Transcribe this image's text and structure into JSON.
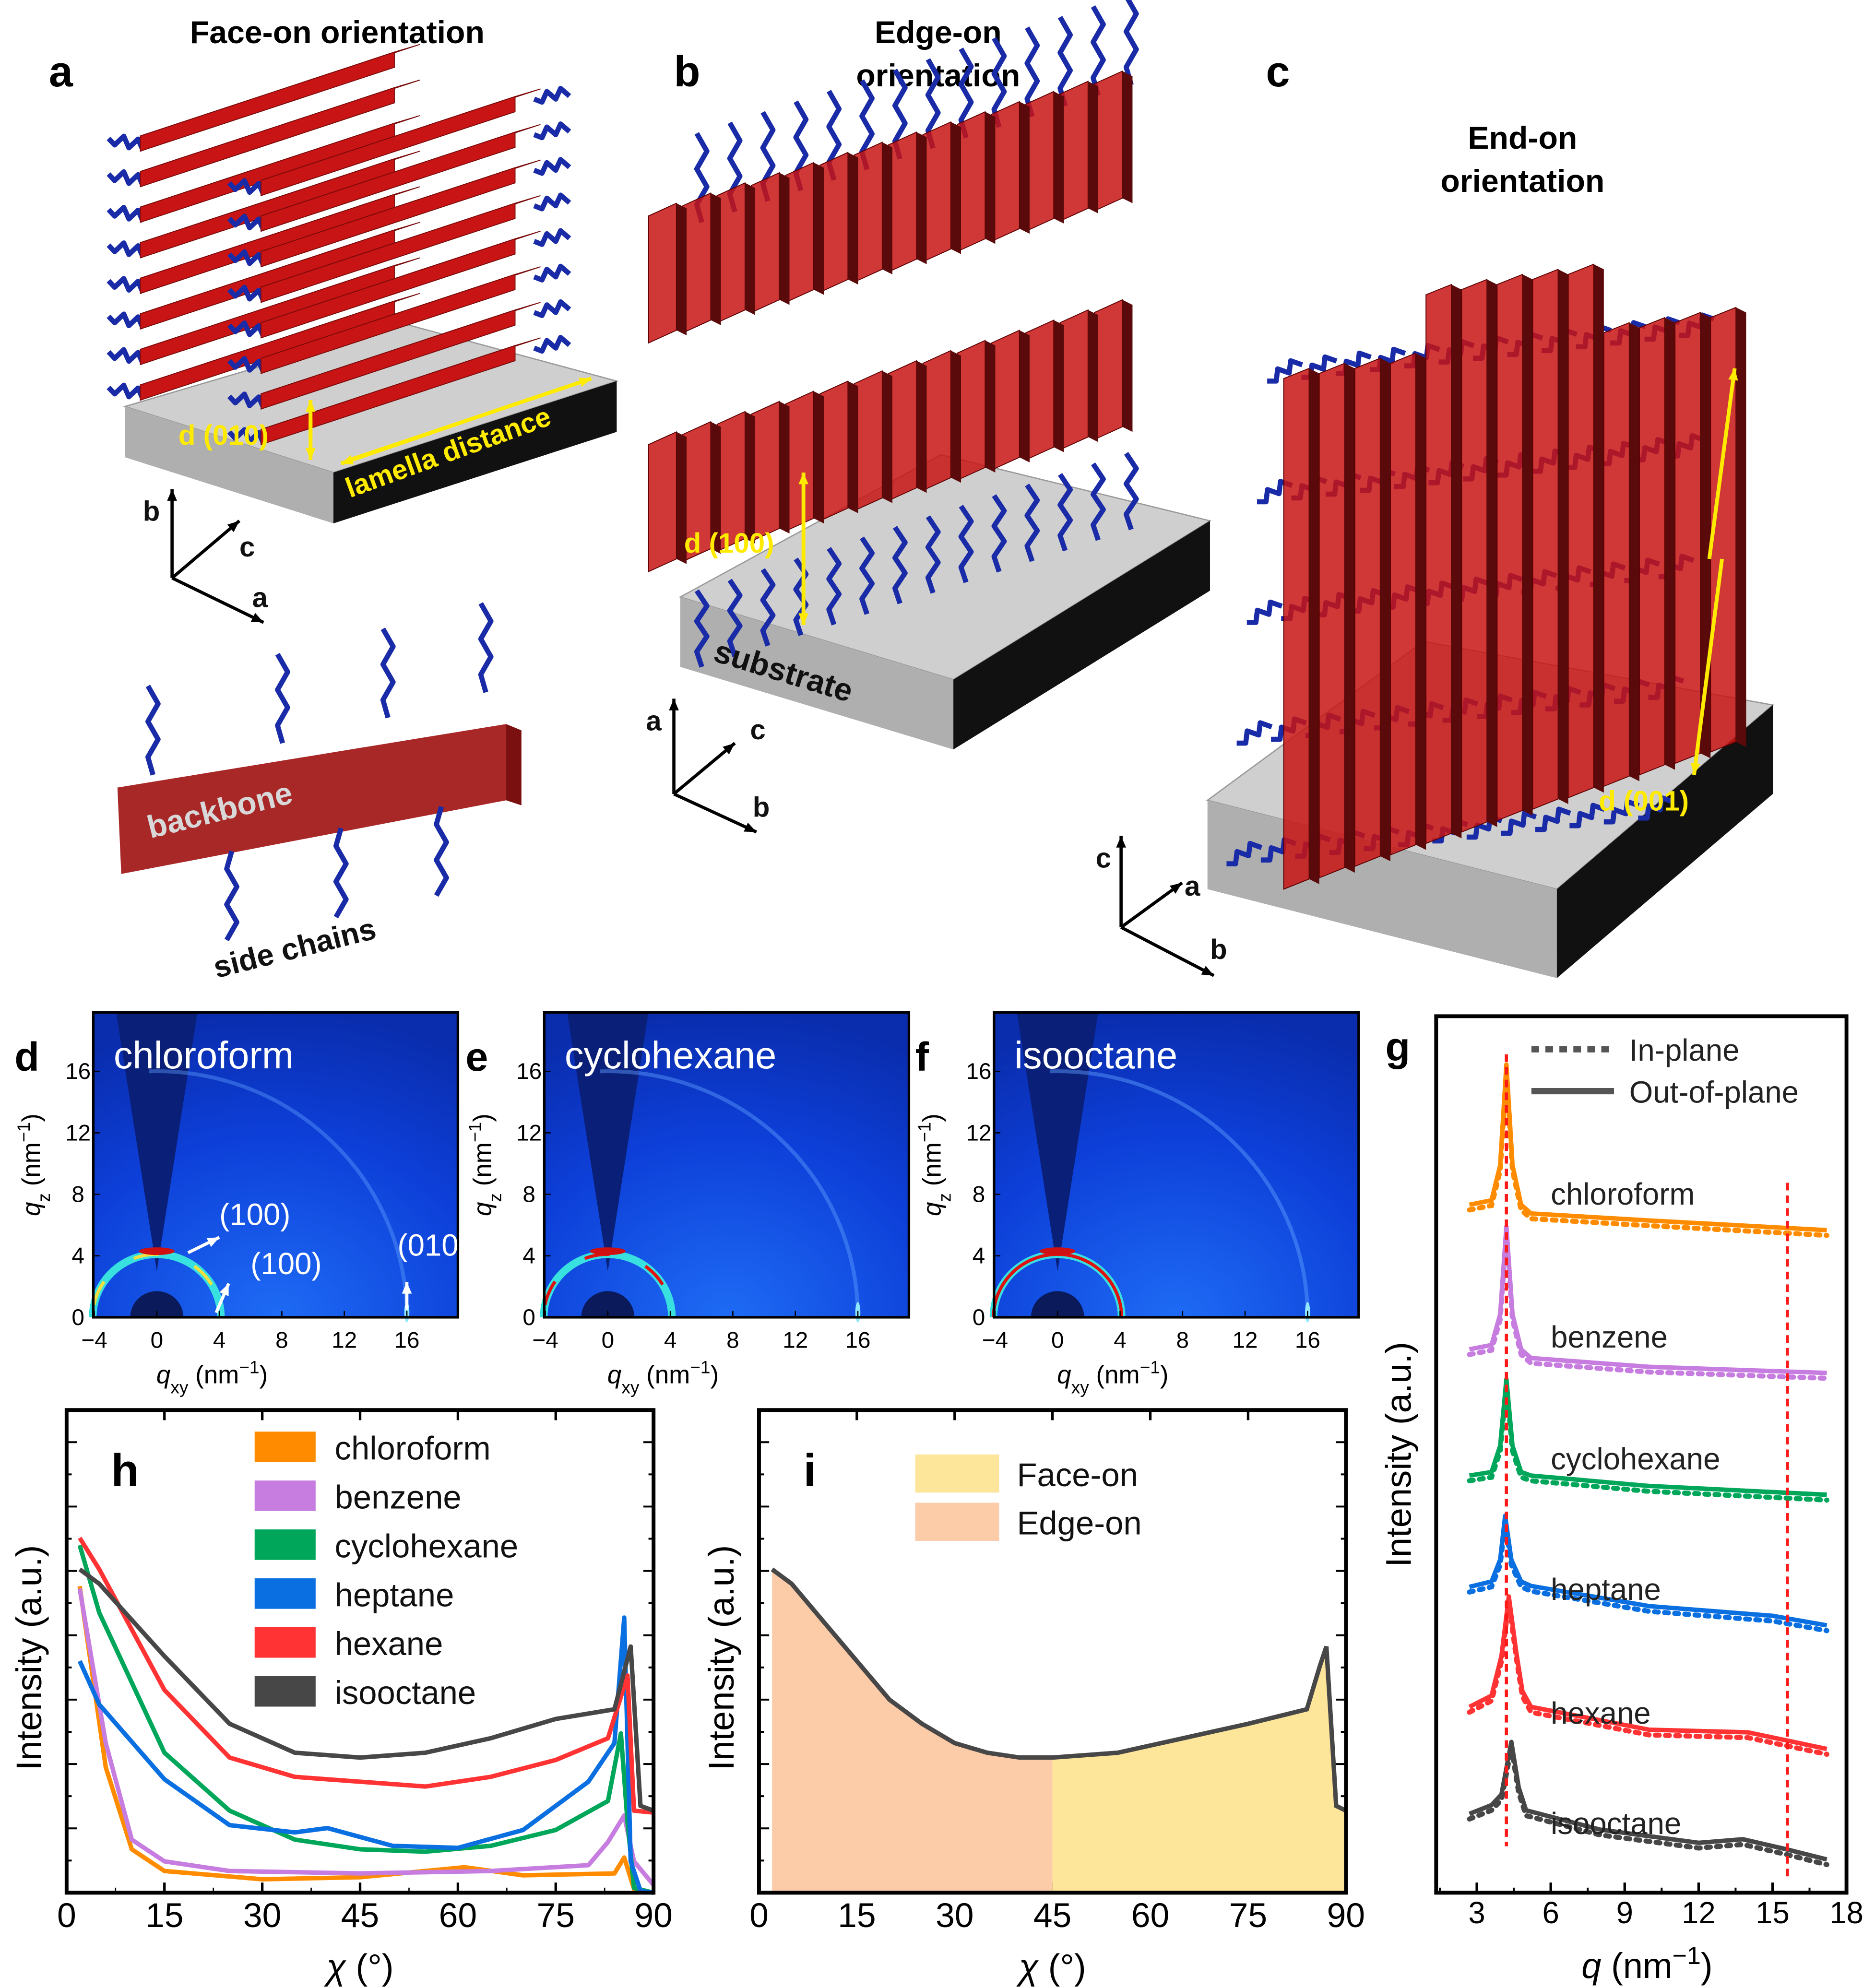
{
  "panels": {
    "a": {
      "label": "a",
      "title": "Face-on orientation",
      "d_label": "d (010)",
      "lamella_label": "lamella distance",
      "axes": [
        "b",
        "c",
        "a"
      ],
      "backbone_label": "backbone",
      "side_chains_label": "side chains"
    },
    "b": {
      "label": "b",
      "title_line1": "Edge-on",
      "title_line2": "orientation",
      "d_label": "d (100)",
      "substrate_label": "substrate",
      "axes": [
        "a",
        "c",
        "b"
      ]
    },
    "c": {
      "label": "c",
      "title_line1": "End-on",
      "title_line2": "orientation",
      "d_label": "d (001)",
      "axes": [
        "c",
        "a",
        "b"
      ]
    }
  },
  "colors": {
    "backbone": "#C81414",
    "side_chain": "#1A2BA8",
    "annotation": "#FFEB00",
    "substrate": "#BDBDBD",
    "chloroform": "#FF8C00",
    "benzene": "#C77CE0",
    "cyclohexane": "#00A65A",
    "heptane": "#0A6FE0",
    "hexane": "#FF3333",
    "isooctane": "#474747",
    "face_on": "#FDE59A",
    "edge_on": "#FCCBA8",
    "guide": "#FF1A1A"
  },
  "chart_data": [
    {
      "id": "d",
      "type": "heatmap",
      "label": "d",
      "title": "chloroform",
      "xlabel": {
        "sym": "q",
        "sub": "xy",
        "unit": " (nm",
        "sup": "−1",
        "close": ")"
      },
      "ylabel": {
        "sym": "q",
        "sub": "z",
        "unit": " (nm",
        "sup": "−1",
        "close": ")"
      },
      "xticks": [
        "−4",
        "0",
        "4",
        "8",
        "12",
        "16"
      ],
      "yticks": [
        "0",
        "4",
        "8",
        "12",
        "16"
      ],
      "xlim": [
        -4,
        19.2
      ],
      "ylim": [
        0,
        19.8
      ],
      "ring_100_intensity": 0.6,
      "ring_010_intensity": 0.2,
      "annotations": [
        "(100)",
        "(100)",
        "(010)"
      ]
    },
    {
      "id": "e",
      "type": "heatmap",
      "label": "e",
      "title": "cyclohexane",
      "xlabel": {
        "sym": "q",
        "sub": "xy",
        "unit": " (nm",
        "sup": "−1",
        "close": ")"
      },
      "ylabel": {
        "sym": "q",
        "sub": "z",
        "unit": " (nm",
        "sup": "−1",
        "close": ")"
      },
      "xticks": [
        "−4",
        "0",
        "4",
        "8",
        "12",
        "16"
      ],
      "yticks": [
        "0",
        "4",
        "8",
        "12",
        "16"
      ],
      "xlim": [
        -4,
        19.2
      ],
      "ylim": [
        0,
        19.8
      ],
      "ring_100_intensity": 0.8,
      "ring_010_intensity": 0.3
    },
    {
      "id": "f",
      "type": "heatmap",
      "label": "f",
      "title": "isooctane",
      "xlabel": {
        "sym": "q",
        "sub": "xy",
        "unit": " (nm",
        "sup": "−1",
        "close": ")"
      },
      "ylabel": {
        "sym": "q",
        "sub": "z",
        "unit": " (nm",
        "sup": "−1",
        "close": ")"
      },
      "xticks": [
        "−4",
        "0",
        "4",
        "8",
        "12",
        "16"
      ],
      "yticks": [
        "0",
        "4",
        "8",
        "12",
        "16"
      ],
      "xlim": [
        -4,
        19.2
      ],
      "ylim": [
        0,
        19.8
      ],
      "ring_100_intensity": 1.0,
      "ring_010_intensity": 0.35
    },
    {
      "id": "g",
      "type": "line",
      "label": "g",
      "xlabel": {
        "sym": "q",
        "unit": " (nm",
        "sup": "−1",
        "close": ")"
      },
      "ylabel": "Intensity (a.u.)",
      "xticks": [
        "3",
        "6",
        "9",
        "12",
        "15",
        "18"
      ],
      "xtick_values": [
        3,
        6,
        9,
        12,
        15,
        18
      ],
      "xlim": [
        1.35,
        18
      ],
      "ylim": [
        0,
        1
      ],
      "legend": [
        {
          "style": "dotted",
          "label": "In-plane"
        },
        {
          "style": "solid",
          "label": "Out-of-plane"
        }
      ],
      "guide_lines": [
        4.2,
        15.6
      ],
      "series": [
        {
          "name": "chloroform",
          "x": [
            2.7,
            3.6,
            3.95,
            4.2,
            4.45,
            4.8,
            5.2,
            10,
            17.2
          ],
          "y": [
            0.785,
            0.79,
            0.83,
            0.945,
            0.83,
            0.785,
            0.775,
            0.767,
            0.756
          ]
        },
        {
          "name": "benzene",
          "x": [
            2.7,
            3.6,
            3.95,
            4.2,
            4.45,
            4.8,
            5.2,
            10,
            17.2
          ],
          "y": [
            0.62,
            0.625,
            0.66,
            0.76,
            0.66,
            0.62,
            0.61,
            0.6,
            0.593
          ]
        },
        {
          "name": "cyclohexane",
          "x": [
            2.7,
            3.6,
            3.95,
            4.2,
            4.45,
            4.8,
            5.2,
            10,
            17.2
          ],
          "y": [
            0.476,
            0.48,
            0.51,
            0.586,
            0.51,
            0.48,
            0.476,
            0.464,
            0.454
          ]
        },
        {
          "name": "heptane",
          "x": [
            2.7,
            3.6,
            3.95,
            4.15,
            4.4,
            4.8,
            5.2,
            10,
            15,
            17.2
          ],
          "y": [
            0.349,
            0.355,
            0.38,
            0.43,
            0.38,
            0.355,
            0.35,
            0.327,
            0.316,
            0.305
          ]
        },
        {
          "name": "hexane",
          "x": [
            2.7,
            3.6,
            4.0,
            4.3,
            4.6,
            4.85,
            5.2,
            10,
            14,
            17.2
          ],
          "y": [
            0.212,
            0.225,
            0.27,
            0.338,
            0.275,
            0.23,
            0.212,
            0.186,
            0.183,
            0.164
          ]
        },
        {
          "name": "isooctane",
          "x": [
            2.7,
            3.6,
            4.0,
            4.4,
            4.7,
            5.0,
            8,
            12,
            13.8,
            15.5,
            17.2
          ],
          "y": [
            0.09,
            0.1,
            0.112,
            0.172,
            0.12,
            0.094,
            0.072,
            0.057,
            0.061,
            0.05,
            0.038
          ]
        }
      ]
    },
    {
      "id": "h",
      "type": "line",
      "label": "h",
      "xlabel": {
        "sym": "χ",
        "unit": " (°)"
      },
      "ylabel": "Intensity (a.u.)",
      "xticks": [
        "0",
        "15",
        "30",
        "45",
        "60",
        "75",
        "90"
      ],
      "xtick_values": [
        0,
        15,
        30,
        45,
        60,
        75,
        90
      ],
      "xlim": [
        0,
        90
      ],
      "ylim": [
        0,
        1
      ],
      "legend_position": "top-center",
      "series": [
        {
          "name": "chloroform",
          "x": [
            2,
            6,
            10,
            15,
            30,
            45,
            55,
            61,
            70,
            84,
            85.5,
            87,
            90
          ],
          "y": [
            0.635,
            0.26,
            0.09,
            0.045,
            0.028,
            0.032,
            0.045,
            0.053,
            0.036,
            0.04,
            0.073,
            0.008,
            0
          ]
        },
        {
          "name": "benzene",
          "x": [
            2,
            6,
            10,
            15,
            25,
            45,
            65,
            80,
            83,
            85.5,
            87,
            90
          ],
          "y": [
            0.63,
            0.31,
            0.11,
            0.065,
            0.045,
            0.04,
            0.045,
            0.057,
            0.105,
            0.16,
            0.065,
            0.016
          ]
        },
        {
          "name": "cyclohexane",
          "x": [
            2,
            5,
            15,
            25,
            35,
            45,
            55,
            65,
            75,
            83,
            85,
            86,
            87,
            90
          ],
          "y": [
            0.72,
            0.58,
            0.29,
            0.17,
            0.11,
            0.09,
            0.085,
            0.097,
            0.13,
            0.19,
            0.33,
            0.146,
            0.01,
            0
          ]
        },
        {
          "name": "heptane",
          "x": [
            2,
            5,
            15,
            25,
            35,
            40,
            50,
            60,
            70,
            80,
            84,
            85.5,
            86.5,
            88,
            90
          ],
          "y": [
            0.48,
            0.39,
            0.235,
            0.14,
            0.125,
            0.134,
            0.097,
            0.093,
            0.13,
            0.23,
            0.31,
            0.57,
            0.065,
            0.004,
            0
          ]
        },
        {
          "name": "hexane",
          "x": [
            2,
            5,
            15,
            25,
            35,
            45,
            55,
            65,
            75,
            83,
            86,
            87,
            90
          ],
          "y": [
            0.735,
            0.67,
            0.42,
            0.28,
            0.24,
            0.23,
            0.22,
            0.24,
            0.275,
            0.32,
            0.45,
            0.17,
            0.166
          ]
        },
        {
          "name": "isooctane",
          "x": [
            2,
            5,
            15,
            25,
            35,
            45,
            55,
            65,
            75,
            84,
            86.5,
            88,
            90
          ],
          "y": [
            0.67,
            0.64,
            0.49,
            0.35,
            0.29,
            0.28,
            0.29,
            0.32,
            0.36,
            0.38,
            0.51,
            0.18,
            0.17
          ]
        }
      ]
    },
    {
      "id": "i",
      "type": "area",
      "label": "i",
      "xlabel": {
        "sym": "χ",
        "unit": " (°)"
      },
      "ylabel": "Intensity (a.u.)",
      "xticks": [
        "0",
        "15",
        "30",
        "45",
        "60",
        "75",
        "90"
      ],
      "xtick_values": [
        0,
        15,
        30,
        45,
        60,
        75,
        90
      ],
      "xlim": [
        0,
        90
      ],
      "ylim": [
        0,
        1
      ],
      "legend_position": "top-center",
      "regions": [
        {
          "name": "Face-on",
          "from": 45,
          "to": 90
        },
        {
          "name": "Edge-on",
          "from": 2,
          "to": 45
        }
      ],
      "series": [
        {
          "name": "isooctane",
          "x": [
            2,
            5,
            10,
            15,
            20,
            25,
            30,
            35,
            40,
            45,
            55,
            65,
            75,
            84,
            86,
            87,
            88.5,
            90
          ],
          "y": [
            0.67,
            0.64,
            0.56,
            0.48,
            0.4,
            0.35,
            0.31,
            0.29,
            0.28,
            0.28,
            0.29,
            0.32,
            0.35,
            0.38,
            0.47,
            0.51,
            0.18,
            0.17
          ]
        }
      ]
    }
  ]
}
